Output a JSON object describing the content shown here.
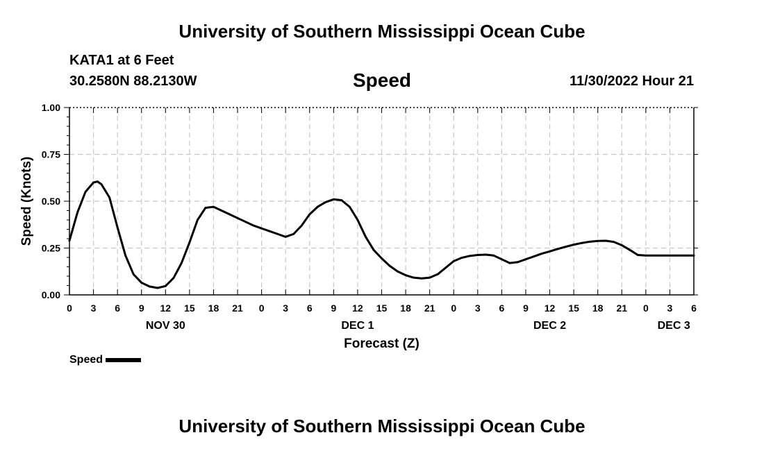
{
  "page": {
    "title_top": "University of Southern Mississippi Ocean Cube",
    "title_bottom": "University of Southern Mississippi Ocean Cube",
    "station": "KATA1 at 6 Feet",
    "coords": "30.2580N  88.2130W",
    "datetime": "11/30/2022 Hour 21"
  },
  "chart_data": {
    "type": "line",
    "title": "Speed",
    "xlabel": "Forecast (Z)",
    "ylabel": "Speed (Knots)",
    "ylim": [
      0,
      1
    ],
    "yticks": [
      0,
      0.25,
      0.5,
      0.75,
      1.0
    ],
    "ytick_labels": [
      "0.00",
      "0.25",
      "0.50",
      "0.75",
      "1.00"
    ],
    "xlim": [
      0,
      78
    ],
    "xticks": [
      0,
      3,
      6,
      9,
      12,
      15,
      18,
      21,
      24,
      27,
      30,
      33,
      36,
      39,
      42,
      45,
      48,
      51,
      54,
      57,
      60,
      63,
      66,
      69,
      72,
      75,
      78
    ],
    "xtick_labels": [
      "0",
      "3",
      "6",
      "9",
      "12",
      "15",
      "18",
      "21",
      "0",
      "3",
      "6",
      "9",
      "12",
      "15",
      "18",
      "21",
      "0",
      "3",
      "6",
      "9",
      "12",
      "15",
      "18",
      "21",
      "0",
      "3",
      "6"
    ],
    "date_labels": [
      {
        "text": "NOV 30",
        "x": 12
      },
      {
        "text": "DEC 1",
        "x": 36
      },
      {
        "text": "DEC 2",
        "x": 60
      },
      {
        "text": "DEC 3",
        "x": 75.5
      }
    ],
    "grid": true,
    "legend": "bottom-left",
    "series": [
      {
        "name": "Speed",
        "color": "#000000",
        "x": [
          0,
          1,
          2,
          3,
          3.5,
          4,
          5,
          6,
          7,
          8,
          9,
          10,
          11,
          12,
          13,
          14,
          15,
          16,
          17,
          18,
          19,
          20,
          21,
          22,
          23,
          24,
          25,
          26,
          27,
          28,
          29,
          30,
          31,
          32,
          33,
          34,
          35,
          36,
          37,
          38,
          39,
          40,
          41,
          42,
          43,
          44,
          45,
          46,
          47,
          48,
          49,
          50,
          51,
          52,
          53,
          54,
          55,
          56,
          57,
          58,
          59,
          60,
          61,
          62,
          63,
          64,
          65,
          66,
          67,
          68,
          69,
          70,
          71,
          72,
          73,
          74,
          75,
          76,
          77,
          78
        ],
        "values": [
          0.29,
          0.44,
          0.55,
          0.6,
          0.605,
          0.59,
          0.52,
          0.36,
          0.21,
          0.11,
          0.065,
          0.045,
          0.037,
          0.047,
          0.09,
          0.17,
          0.28,
          0.4,
          0.465,
          0.47,
          0.45,
          0.43,
          0.41,
          0.39,
          0.37,
          0.355,
          0.34,
          0.325,
          0.31,
          0.325,
          0.37,
          0.43,
          0.47,
          0.495,
          0.51,
          0.505,
          0.47,
          0.4,
          0.31,
          0.24,
          0.195,
          0.155,
          0.125,
          0.105,
          0.092,
          0.088,
          0.092,
          0.11,
          0.145,
          0.18,
          0.198,
          0.208,
          0.213,
          0.215,
          0.21,
          0.19,
          0.17,
          0.175,
          0.19,
          0.205,
          0.22,
          0.232,
          0.245,
          0.257,
          0.268,
          0.277,
          0.284,
          0.288,
          0.289,
          0.283,
          0.265,
          0.24,
          0.213,
          0.21,
          0.21,
          0.21,
          0.21,
          0.21,
          0.21,
          0.21
        ]
      }
    ]
  }
}
